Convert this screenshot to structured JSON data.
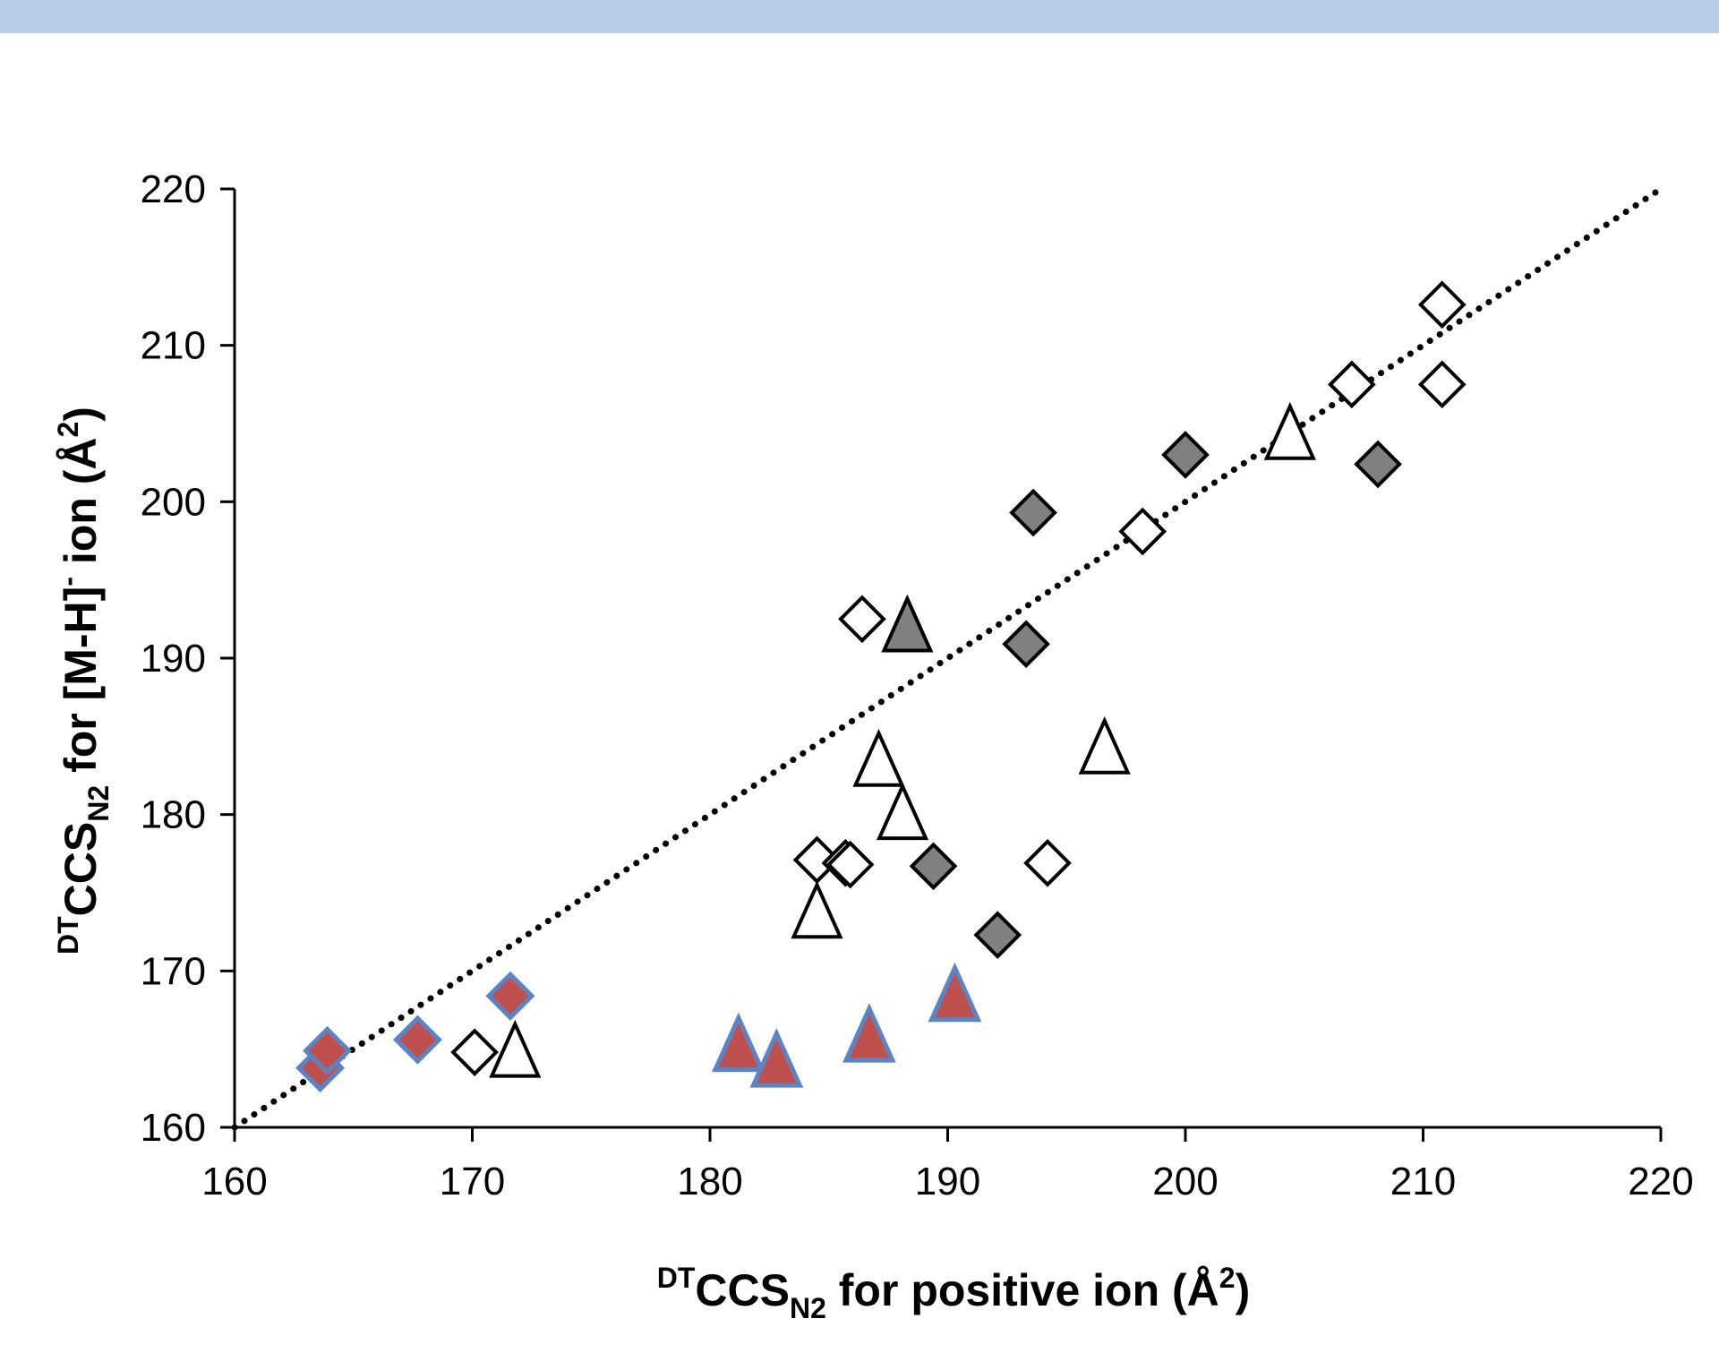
{
  "colors": {
    "top_band": "#b7cde6",
    "gray_fill": "#808080",
    "red_fill": "#c0504d",
    "blue_outline": "#5b84c5",
    "open_fill": "#ffffff",
    "stroke": "#000000"
  },
  "chart_data": {
    "type": "scatter",
    "xlabel": {
      "pre": "DT",
      "main": "CCS",
      "sub": "N2",
      "rest": " for positive ion (Å",
      "sup": "2",
      "end": ")"
    },
    "ylabel": {
      "pre": "DT",
      "main": "CCS",
      "sub": "N2",
      "rest": " for [M-H]",
      "sup": "-",
      "rest2": " ion (Å",
      "sup2": "2",
      "end": ")"
    },
    "xlim": [
      160,
      220
    ],
    "ylim": [
      160,
      220
    ],
    "x_ticks": [
      "160",
      "170",
      "180",
      "190",
      "200",
      "210",
      "220"
    ],
    "y_ticks": [
      "160",
      "170",
      "180",
      "190",
      "200",
      "210",
      "220"
    ],
    "grid": false,
    "reference_line": {
      "style": "dotted",
      "from": [
        160,
        160
      ],
      "to": [
        220,
        220
      ]
    },
    "series": [
      {
        "marker": "diamond",
        "style": "red",
        "points": [
          [
            163.6,
            163.8
          ],
          [
            163.9,
            164.9
          ],
          [
            167.7,
            165.6
          ],
          [
            171.6,
            168.4
          ]
        ]
      },
      {
        "marker": "diamond",
        "style": "open",
        "points": [
          [
            170.1,
            164.8
          ],
          [
            184.5,
            177.1
          ],
          [
            185.7,
            176.9
          ],
          [
            185.9,
            176.8
          ],
          [
            186.4,
            192.5
          ],
          [
            194.2,
            176.9
          ],
          [
            198.2,
            198.1
          ],
          [
            207.0,
            207.5
          ],
          [
            210.8,
            212.6
          ],
          [
            210.8,
            207.5
          ]
        ]
      },
      {
        "marker": "diamond",
        "style": "gray",
        "points": [
          [
            189.4,
            176.7
          ],
          [
            192.1,
            172.3
          ],
          [
            193.3,
            190.9
          ],
          [
            193.6,
            199.3
          ],
          [
            200.0,
            203.0
          ],
          [
            208.1,
            202.4
          ]
        ]
      },
      {
        "marker": "triangle",
        "style": "open",
        "points": [
          [
            171.8,
            164.6
          ],
          [
            184.5,
            173.5
          ],
          [
            187.1,
            183.2
          ],
          [
            188.1,
            179.8
          ],
          [
            196.6,
            184.0
          ],
          [
            204.4,
            204.1
          ]
        ]
      },
      {
        "marker": "triangle",
        "style": "gray",
        "points": [
          [
            188.3,
            191.8
          ]
        ]
      },
      {
        "marker": "triangle",
        "style": "red",
        "points": [
          [
            181.2,
            165.0
          ],
          [
            182.8,
            164.0
          ],
          [
            186.7,
            165.6
          ],
          [
            190.3,
            168.2
          ]
        ]
      }
    ]
  }
}
